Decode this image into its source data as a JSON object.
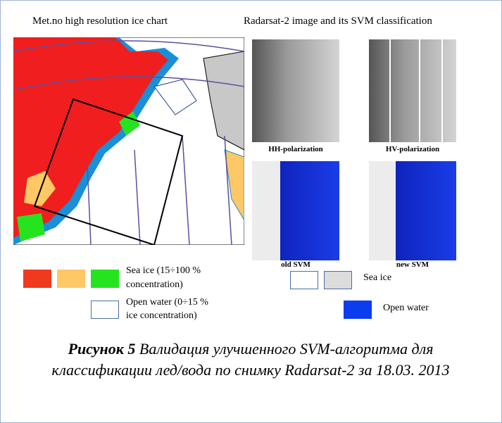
{
  "figure": {
    "left_heading": "Met.no high resolution ice chart",
    "right_heading": "Radarsat-2 image and its SVM classification",
    "image_labels": [
      "HH-polarization",
      "HV-polarization",
      "old SVM",
      "new SVM"
    ],
    "left_legend": {
      "sea_ice": [
        "Sea ice (15÷100 %",
        "concentration)"
      ],
      "open_water": [
        "Open water (0÷15 %",
        "ice concentration)"
      ]
    },
    "right_legend": {
      "sea_ice": "Sea ice",
      "open_water": "Open water"
    },
    "caption": {
      "label": "Рисунок 5",
      "text": "Валидация улучшенного SVM-алгоритма для классификации лед/вода по снимку Radarsat-2 за 18.03. 2013"
    }
  }
}
